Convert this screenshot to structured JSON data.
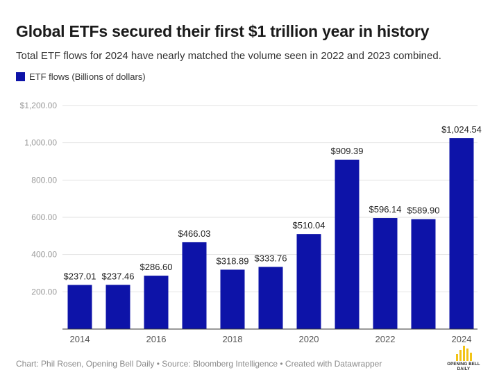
{
  "header": {
    "title": "Global ETFs secured their first $1 trillion year in history",
    "subtitle": "Total ETF flows for 2024 have nearly matched the volume seen in 2022 and 2023 combined."
  },
  "legend": {
    "label": "ETF flows (Billions of dollars)",
    "color": "#0d13a8"
  },
  "footer": {
    "text": "Chart: Phil Rosen, Opening Bell Daily • Source: Bloomberg Intelligence • Created with Datawrapper"
  },
  "logo": {
    "line1": "OPENING BELL",
    "line2": "DAILY",
    "color": "#f2c417"
  },
  "chart_data": {
    "type": "bar",
    "categories": [
      "2014",
      "2015",
      "2016",
      "2017",
      "2018",
      "2019",
      "2020",
      "2021",
      "2022",
      "2023",
      "2024"
    ],
    "x_tick_labels": [
      "2014",
      "",
      "2016",
      "",
      "2018",
      "",
      "2020",
      "",
      "2022",
      "",
      "2024"
    ],
    "series": [
      {
        "name": "ETF flows (Billions of dollars)",
        "values": [
          237.01,
          237.46,
          286.6,
          466.03,
          318.89,
          333.76,
          510.04,
          909.39,
          596.14,
          589.9,
          1024.54
        ],
        "labels": [
          "$237.01",
          "$237.46",
          "$286.60",
          "$466.03",
          "$318.89",
          "$333.76",
          "$510.04",
          "$909.39",
          "$596.14",
          "$589.90",
          "$1,024.54"
        ]
      }
    ],
    "yticks": [
      200,
      400,
      600,
      800,
      1000,
      1200
    ],
    "ytick_labels": [
      "200.00",
      "400.00",
      "600.00",
      "800.00",
      "1,000.00",
      "$1,200.00"
    ],
    "ylim": [
      0,
      1200
    ],
    "grid": true,
    "bar_color": "#0d13a8"
  }
}
